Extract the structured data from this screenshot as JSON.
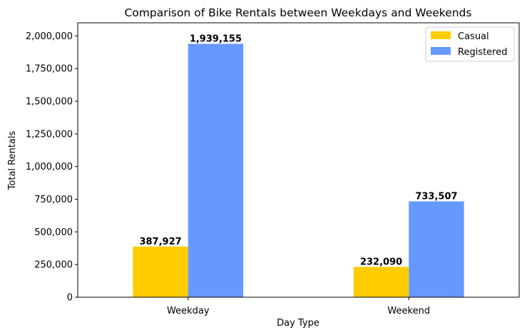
{
  "chart_data": {
    "type": "bar",
    "title": "Comparison of Bike Rentals between Weekdays and Weekends",
    "xlabel": "Day Type",
    "ylabel": "Total Rentals",
    "categories": [
      "Weekday",
      "Weekend"
    ],
    "series": [
      {
        "name": "Casual",
        "values": [
          387927,
          232090
        ],
        "color": "#FFCC00",
        "labels": [
          "387,927",
          "232,090"
        ]
      },
      {
        "name": "Registered",
        "values": [
          1939155,
          733507
        ],
        "color": "#6699FF",
        "labels": [
          "1,939,155",
          "733,507"
        ]
      }
    ],
    "ylim": [
      0,
      2100000
    ],
    "yticks": [
      {
        "value": 0,
        "label": "0"
      },
      {
        "value": 250000,
        "label": "250,000"
      },
      {
        "value": 500000,
        "label": "500,000"
      },
      {
        "value": 750000,
        "label": "750,000"
      },
      {
        "value": 1000000,
        "label": "1,000,000"
      },
      {
        "value": 1250000,
        "label": "1,250,000"
      },
      {
        "value": 1500000,
        "label": "1,500,000"
      },
      {
        "value": 1750000,
        "label": "1,750,000"
      },
      {
        "value": 2000000,
        "label": "2,000,000"
      }
    ],
    "grid": false,
    "legend": "top-right"
  }
}
